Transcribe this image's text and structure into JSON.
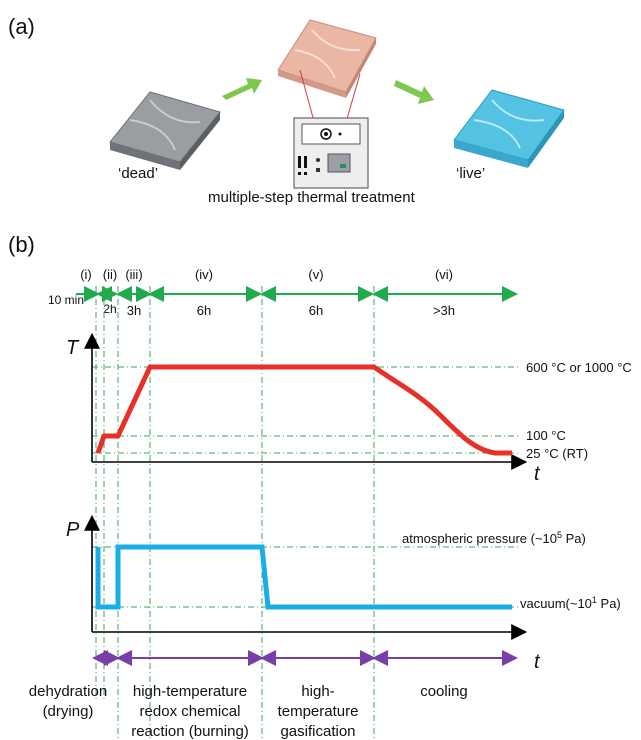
{
  "panel_a": {
    "label": "(a)",
    "dead_label": "‘dead’",
    "live_label": "‘live’",
    "caption": "multiple-step thermal treatment",
    "colors": {
      "dead": "#8c8f93",
      "treated": "#eab7a5",
      "live": "#53c2e3",
      "arrow": "#7ec850"
    }
  },
  "panel_b": {
    "label": "(b)",
    "stages": [
      "(i)",
      "(ii)",
      "(iii)",
      "(iv)",
      "(v)",
      "(vi)"
    ],
    "durations": [
      "10 min",
      "2h",
      "3h",
      "6h",
      "6h",
      ">3h"
    ],
    "temperature_axis": "T",
    "pressure_axis": "P",
    "time_axis": "t",
    "temp_labels": {
      "high": "600 °C or 1000 °C",
      "mid": "100 °C",
      "low": "25 °C (RT)"
    },
    "pressure_labels": {
      "atmospheric": "atmospheric pressure (~10",
      "atmospheric_exp": "5",
      "atmospheric_unit": " Pa)",
      "vacuum": "vacuum(~10",
      "vacuum_exp": "1",
      "vacuum_unit": " Pa)"
    },
    "processes": [
      [
        "dehydration",
        "(drying)"
      ],
      [
        "high-temperature",
        "redox chemical",
        "reaction (burning)"
      ],
      [
        "high-",
        "temperature",
        "gasification"
      ],
      [
        "cooling"
      ]
    ],
    "colors": {
      "temperature": "#e8302a",
      "pressure": "#1aaee6",
      "duration": "#1faa4e",
      "process": "#7a3fa6",
      "guide": "#3aa55a"
    }
  }
}
